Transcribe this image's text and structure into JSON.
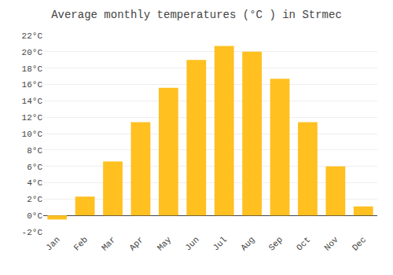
{
  "chart_data": {
    "type": "bar",
    "title": "Average monthly temperatures (°C ) in Strmec",
    "categories": [
      "Jan",
      "Feb",
      "Mar",
      "Apr",
      "May",
      "Jun",
      "Jul",
      "Aug",
      "Sep",
      "Oct",
      "Nov",
      "Dec"
    ],
    "values": [
      -0.5,
      2.3,
      6.6,
      11.4,
      15.6,
      19.0,
      20.7,
      20.0,
      16.7,
      11.4,
      6.0,
      1.1
    ],
    "color": "#FFC020",
    "ylim": [
      -2,
      22
    ],
    "yticks": [
      {
        "value": -2,
        "label": "-2°C"
      },
      {
        "value": 0,
        "label": "0°C"
      },
      {
        "value": 2,
        "label": "2°C"
      },
      {
        "value": 4,
        "label": "4°C"
      },
      {
        "value": 6,
        "label": "6°C"
      },
      {
        "value": 8,
        "label": "8°C"
      },
      {
        "value": 10,
        "label": "10°C"
      },
      {
        "value": 12,
        "label": "12°C"
      },
      {
        "value": 14,
        "label": "14°C"
      },
      {
        "value": 16,
        "label": "16°C"
      },
      {
        "value": 18,
        "label": "18°C"
      },
      {
        "value": 20,
        "label": "20°C"
      },
      {
        "value": 22,
        "label": "22°C"
      }
    ],
    "grid": true
  }
}
